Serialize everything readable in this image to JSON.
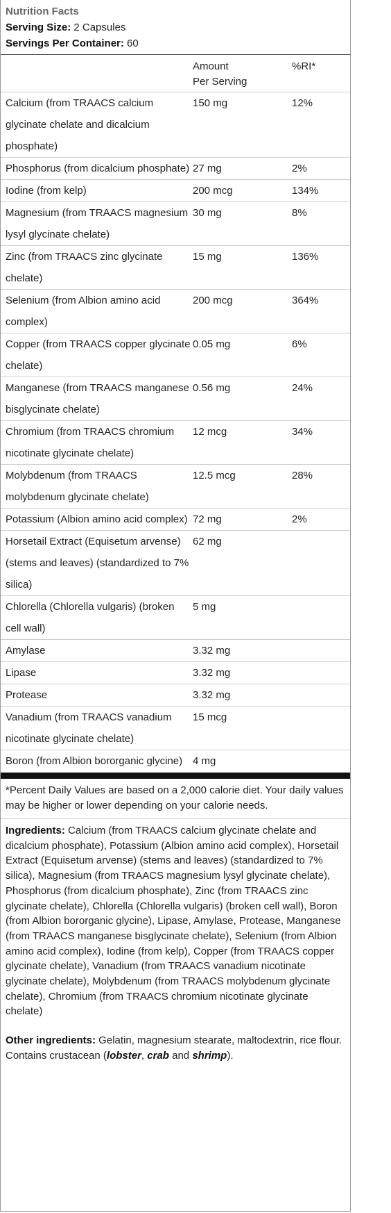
{
  "header": {
    "title": "Nutrition Facts",
    "serving_size_label": "Serving Size:",
    "serving_size_value": " 2 Capsules",
    "servings_label": "Servings Per Container:",
    "servings_value": " 60"
  },
  "table": {
    "col_amount_1": "Amount",
    "col_amount_2": "Per Serving",
    "col_ri": "%RI*",
    "rows": [
      {
        "name": "Calcium (from TRAACS calcium glycinate chelate and dicalcium phosphate)",
        "amount": "150 mg",
        "ri": "12%"
      },
      {
        "name": "Phosphorus (from dicalcium phosphate)",
        "amount": "27 mg",
        "ri": "2%"
      },
      {
        "name": "Iodine (from kelp)",
        "amount": "200 mcg",
        "ri": "134%"
      },
      {
        "name": "Magnesium (from TRAACS magnesium lysyl glycinate chelate)",
        "amount": "30 mg",
        "ri": "8%"
      },
      {
        "name": "Zinc (from TRAACS zinc glycinate chelate)",
        "amount": "15 mg",
        "ri": "136%"
      },
      {
        "name": "Selenium (from Albion amino acid complex)",
        "amount": "200 mcg",
        "ri": "364%"
      },
      {
        "name": "Copper (from TRAACS copper glycinate chelate)",
        "amount": "0.05 mg",
        "ri": "6%"
      },
      {
        "name": "Manganese (from TRAACS manganese bisglycinate chelate)",
        "amount": "0.56 mg",
        "ri": "24%"
      },
      {
        "name": "Chromium (from TRAACS chromium nicotinate glycinate chelate)",
        "amount": "12 mcg",
        "ri": "34%"
      },
      {
        "name": "Molybdenum (from TRAACS molybdenum glycinate chelate)",
        "amount": "12.5 mcg",
        "ri": "28%"
      },
      {
        "name": "Potassium (Albion amino acid complex)",
        "amount": "72 mg",
        "ri": "2%"
      },
      {
        "name": "Horsetail Extract (Equisetum arvense) (stems and leaves) (standardized to 7% silica)",
        "amount": "62 mg",
        "ri": ""
      },
      {
        "name": "Chlorella (Chlorella vulgaris) (broken cell wall)",
        "amount": "5 mg",
        "ri": ""
      },
      {
        "name": "Amylase",
        "amount": "3.32 mg",
        "ri": ""
      },
      {
        "name": "Lipase",
        "amount": "3.32 mg",
        "ri": ""
      },
      {
        "name": "Protease",
        "amount": "3.32 mg",
        "ri": ""
      },
      {
        "name": "Vanadium (from TRAACS vanadium nicotinate glycinate chelate)",
        "amount": "15 mcg",
        "ri": ""
      },
      {
        "name": "Boron (from Albion bororganic glycine)",
        "amount": "4 mg",
        "ri": ""
      }
    ]
  },
  "footnote": "*Percent Daily Values are based on a 2,000 calorie diet. Your daily values may be higher or lower depending on your calorie needs.",
  "ingredients": {
    "label": "Ingredients:",
    "text": " Calcium (from TRAACS calcium glycinate chelate and dicalcium phosphate), Potassium (Albion amino acid complex), Horsetail Extract (Equisetum arvense) (stems and leaves) (standardized to 7% silica), Magnesium (from TRAACS magnesium lysyl glycinate chelate), Phosphorus (from dicalcium phosphate), Zinc (from TRAACS zinc glycinate chelate), Chlorella (Chlorella vulgaris) (broken cell wall), Boron (from Albion bororganic glycine), Lipase, Amylase, Protease, Manganese (from TRAACS manganese bisglycinate chelate), Selenium (from Albion amino acid complex), Iodine (from kelp), Copper (from TRAACS copper glycinate chelate), Vanadium (from TRAACS vanadium nicotinate glycinate chelate), Molybdenum (from TRAACS molybdenum glycinate chelate), Chromium (from TRAACS chromium nicotinate glycinate chelate)"
  },
  "other_ingredients": {
    "label": "Other ingredients:",
    "text_1": " Gelatin, magnesium stearate, maltodextrin, rice flour. Contains crustacean (",
    "allergen_1": "lobster",
    "sep_1": ", ",
    "allergen_2": "crab",
    "sep_2": " and ",
    "allergen_3": "shrimp",
    "text_2": ")."
  }
}
